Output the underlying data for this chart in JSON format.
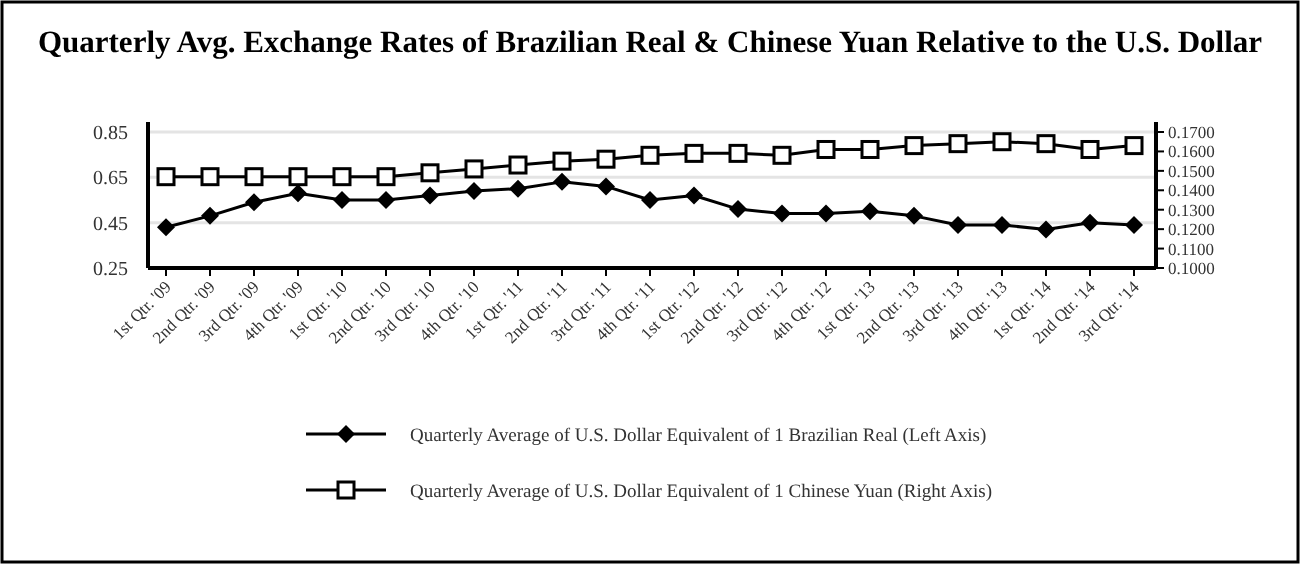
{
  "chart_data": {
    "type": "line",
    "title": "Quarterly Avg. Exchange Rates of Brazilian Real & Chinese Yuan Relative to the U.S. Dollar",
    "categories": [
      "1st Qtr. '09",
      "2nd Qtr. '09",
      "3rd Qtr. '09",
      "4th Qtr. '09",
      "1st Qtr. '10",
      "2nd Qtr. '10",
      "3rd Qtr. '10",
      "4th Qtr. '10",
      "1st Qtr. '11",
      "2nd Qtr. '11",
      "3rd Qtr. '11",
      "4th Qtr. '11",
      "1st Qtr. '12",
      "2nd Qtr. '12",
      "3rd Qtr. '12",
      "4th Qtr. '12",
      "1st Qtr. '13",
      "2nd Qtr. '13",
      "3rd Qtr. '13",
      "4th Qtr. '13",
      "1st Qtr. '14",
      "2nd Qtr. '14",
      "3rd Qtr. '14"
    ],
    "series": [
      {
        "name": "Quarterly Average of U.S. Dollar Equivalent of 1 Brazilian Real (Left Axis)",
        "color": "#000000",
        "marker": "diamond",
        "values": [
          0.43,
          0.48,
          0.54,
          0.58,
          0.55,
          0.55,
          0.57,
          0.59,
          0.6,
          0.63,
          0.61,
          0.55,
          0.57,
          0.51,
          0.49,
          0.49,
          0.5,
          0.48,
          0.44,
          0.44,
          0.42,
          0.45,
          0.44
        ]
      },
      {
        "name": "Quarterly Average of U.S. Dollar Equivalent of 1 Chinese Yuan (Right Axis)",
        "color": "#000000",
        "marker": "square",
        "axis": "y2",
        "values": [
          0.147,
          0.147,
          0.147,
          0.147,
          0.147,
          0.147,
          0.149,
          0.151,
          0.153,
          0.155,
          0.156,
          0.158,
          0.159,
          0.159,
          0.158,
          0.161,
          0.161,
          0.163,
          0.164,
          0.165,
          0.164,
          0.161,
          0.163
        ]
      }
    ],
    "ylim": [
      0.25,
      0.85
    ],
    "yticks": [
      0.25,
      0.45,
      0.65,
      0.85
    ],
    "y2lim": [
      0.1,
      0.17
    ],
    "y2ticks": [
      {
        "value": 0.1,
        "label": "0.1000"
      },
      {
        "value": 0.11,
        "label": "0.1100"
      },
      {
        "value": 0.12,
        "label": "0.1200"
      },
      {
        "value": 0.13,
        "label": "0.1300"
      },
      {
        "value": 0.14,
        "label": "0.1400"
      },
      {
        "value": 0.15,
        "label": "0.1500"
      },
      {
        "value": 0.16,
        "label": "0.1600"
      },
      {
        "value": 0.17,
        "label": "0.1700"
      }
    ],
    "grid": "y",
    "legend": "bottom",
    "line_style": "solid"
  }
}
